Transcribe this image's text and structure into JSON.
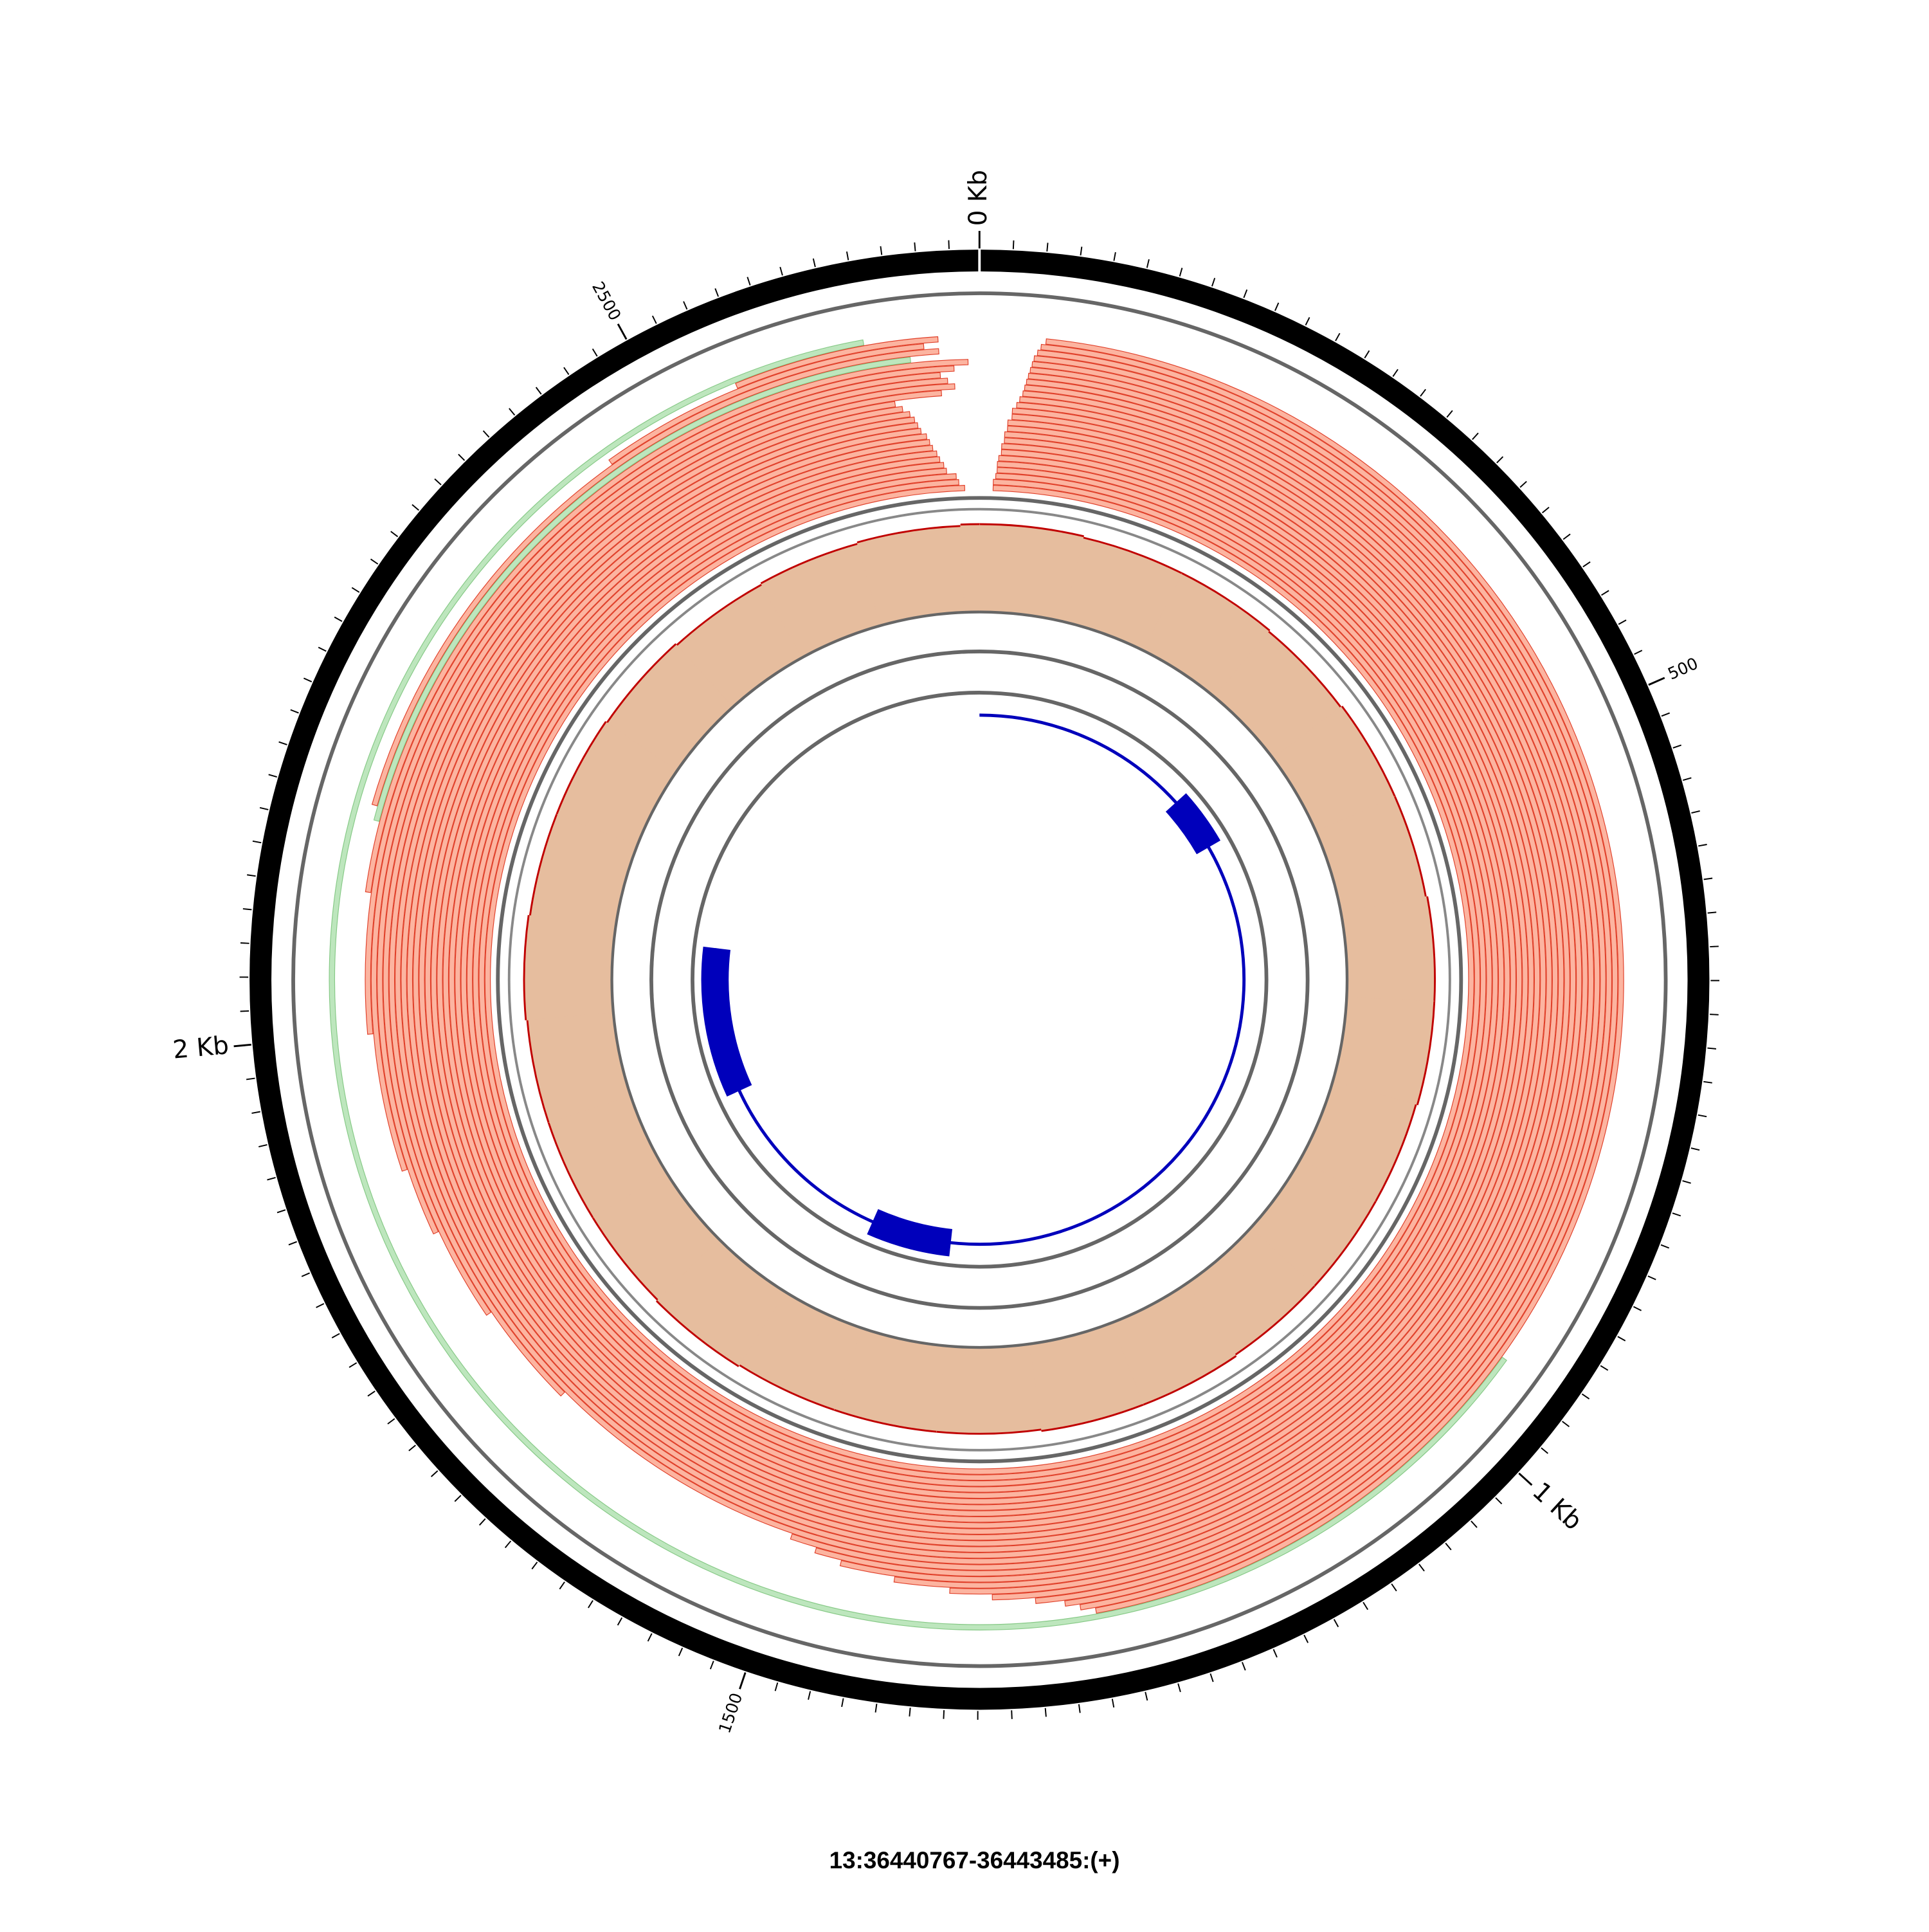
{
  "chart_data": {
    "type": "circos",
    "title": "13:36440767-36443485:(+)",
    "xlim": [
      0,
      2718
    ],
    "xticks": [
      {
        "value": 0,
        "label": "0 Kb"
      },
      500,
      {
        "value": 1000,
        "label": "1 Kb"
      },
      1500,
      {
        "value": 2000,
        "label": "2 Kb"
      },
      2500
    ],
    "minor_tick_step": 20,
    "gene": {
      "color": "#0000bb",
      "line": [
        0,
        2090
      ],
      "exons": [
        [
          362,
          453
        ],
        [
          1406,
          1539
        ],
        [
          1851,
          2090
        ]
      ]
    },
    "coverage": {
      "bins": [
        0,
        100,
        200,
        300,
        400,
        500,
        600,
        700,
        800,
        900,
        1000,
        1100,
        1200,
        1300,
        1400,
        1500,
        1600,
        1700,
        1800,
        1900,
        2000,
        2100,
        2200,
        2300,
        2400,
        2500,
        2600,
        2700,
        2718
      ],
      "values": [
        60,
        59,
        59,
        58,
        59,
        59,
        60,
        60,
        59,
        59,
        59,
        60,
        60,
        59,
        59,
        59,
        60,
        59,
        59,
        59,
        60,
        59,
        59,
        58,
        57,
        58,
        59,
        60
      ],
      "ylim": [
        0,
        60
      ],
      "color": "#e6bd9e",
      "line_color": "#c00000"
    },
    "strand_colors": {
      "+": "#fcb4a0",
      "-": "#bde6bd"
    },
    "strand_line_colors": {
      "+": "#e0402a",
      "-": "#86c986"
    },
    "reads": [
      {
        "start": 12,
        "end": 2705,
        "strand": "+"
      },
      {
        "start": 12,
        "end": 2700,
        "strand": "+"
      },
      {
        "start": 14,
        "end": 2698,
        "strand": "+"
      },
      {
        "start": 15,
        "end": 2690,
        "strand": "+"
      },
      {
        "start": 15,
        "end": 2688,
        "strand": "+"
      },
      {
        "start": 16,
        "end": 2685,
        "strand": "+"
      },
      {
        "start": 18,
        "end": 2683,
        "strand": "+"
      },
      {
        "start": 18,
        "end": 2680,
        "strand": "+"
      },
      {
        "start": 20,
        "end": 2678,
        "strand": "+"
      },
      {
        "start": 20,
        "end": 2676,
        "strand": "+"
      },
      {
        "start": 22,
        "end": 2672,
        "strand": "+"
      },
      {
        "start": 22,
        "end": 2670,
        "strand": "+"
      },
      {
        "start": 25,
        "end": 2668,
        "strand": "+"
      },
      {
        "start": 25,
        "end": 2665,
        "strand": "+"
      },
      {
        "start": 28,
        "end": 2660,
        "strand": "+"
      },
      {
        "start": 30,
        "end": 2655,
        "strand": "+"
      },
      {
        "start": 32,
        "end": 1500,
        "strand": "+"
      },
      {
        "start": 33,
        "end": 1480,
        "strand": "+"
      },
      {
        "start": 34,
        "end": 1460,
        "strand": "+"
      },
      {
        "start": 35,
        "end": 1420,
        "strand": "+"
      },
      {
        "start": 36,
        "end": 1380,
        "strand": "+"
      },
      {
        "start": 37,
        "end": 1350,
        "strand": "+"
      },
      {
        "start": 38,
        "end": 1320,
        "strand": "+"
      },
      {
        "start": 40,
        "end": 1300,
        "strand": "+"
      },
      {
        "start": 42,
        "end": 1290,
        "strand": "+"
      },
      {
        "start": 45,
        "end": 1280,
        "strand": "+"
      },
      {
        "start": 950,
        "end": 2640,
        "strand": "-"
      },
      {
        "start": 1700,
        "end": 2690,
        "strand": "+"
      },
      {
        "start": 1780,
        "end": 2700,
        "strand": "+"
      },
      {
        "start": 1850,
        "end": 2695,
        "strand": "+"
      },
      {
        "start": 1900,
        "end": 2690,
        "strand": "+"
      },
      {
        "start": 2000,
        "end": 2700,
        "strand": "+"
      },
      {
        "start": 2100,
        "end": 2710,
        "strand": "+"
      },
      {
        "start": 2150,
        "end": 2670,
        "strand": "-"
      },
      {
        "start": 2160,
        "end": 2690,
        "strand": "+"
      },
      {
        "start": 2450,
        "end": 2680,
        "strand": "+"
      },
      {
        "start": 2550,
        "end": 2690,
        "strand": "+"
      }
    ]
  }
}
